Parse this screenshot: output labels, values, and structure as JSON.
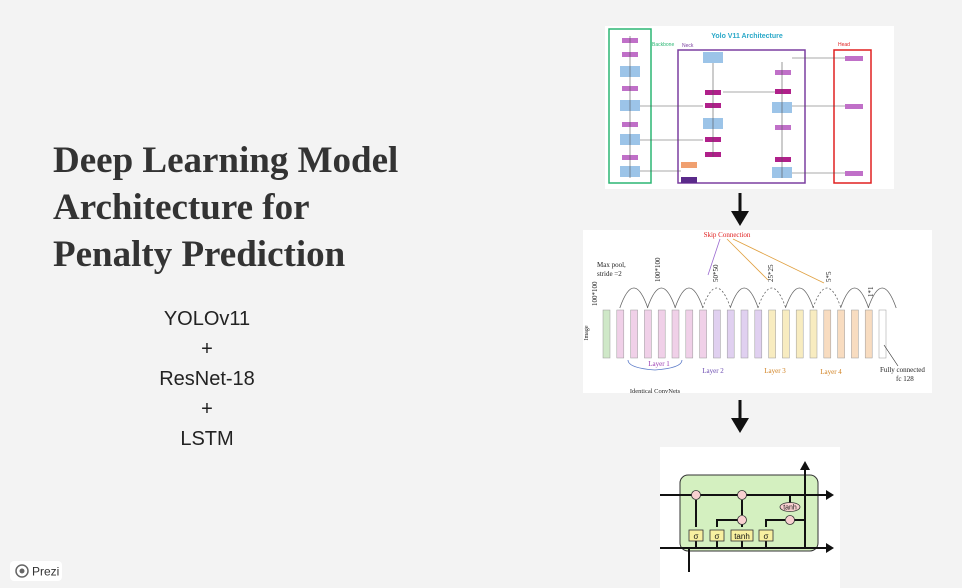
{
  "slide": {
    "title_lines": [
      "Deep Learning Model",
      "Architecture for",
      "Penalty Prediction"
    ],
    "stack": [
      "YOLOv11",
      "+",
      "ResNet-18",
      "+",
      "LSTM"
    ]
  },
  "yolo": {
    "title": "Yolo V11 Architecture",
    "backbone": "Backbone",
    "neck": "Neck",
    "head": "Head"
  },
  "resnet": {
    "skip": "Skip Connection",
    "maxpool": "Max pool,",
    "stride": "stride =2",
    "image": "Image",
    "sizes": [
      "100*100",
      "100*100",
      "50*50",
      "25*25",
      "5*5",
      "1*1"
    ],
    "layers": [
      "Layer 1",
      "Layer 2",
      "Layer 3",
      "Layer 4"
    ],
    "identical": "Identical ConvNets",
    "fc": "Fully connected",
    "fc_size": "fc 128"
  },
  "lstm": {
    "gates": [
      "σ",
      "σ",
      "tanh",
      "σ"
    ],
    "tanh": "tanh"
  },
  "brand": "Prezi"
}
